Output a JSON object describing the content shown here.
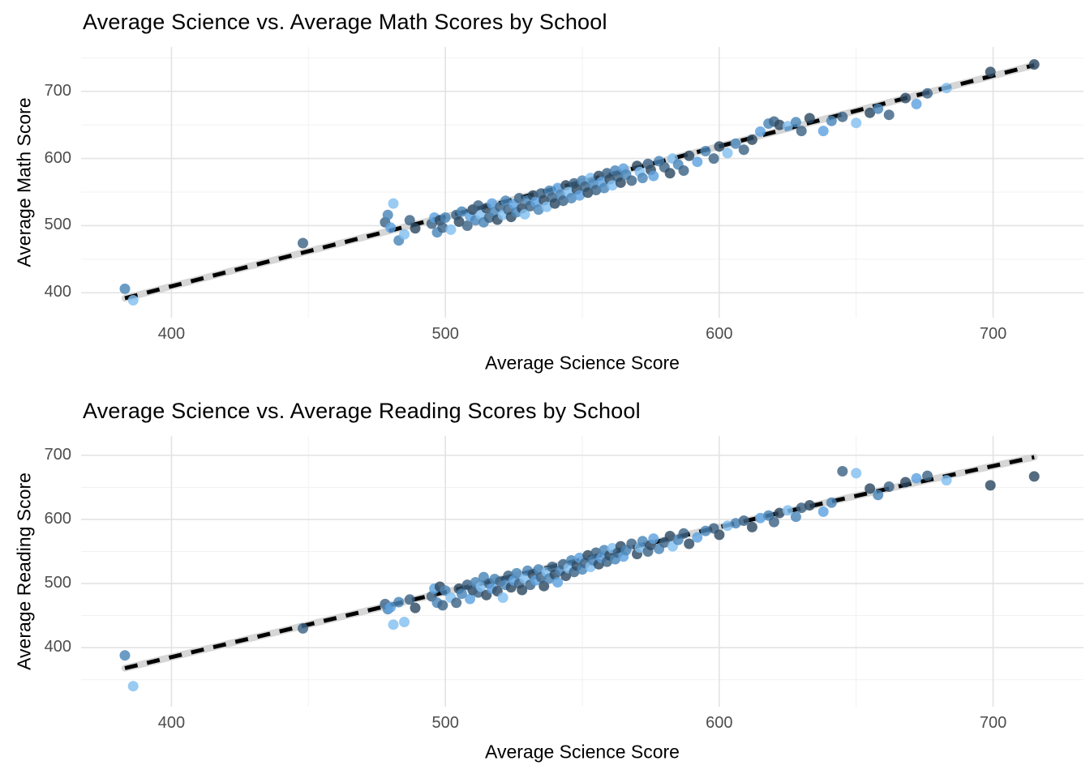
{
  "theme": {
    "background": "#ffffff",
    "grid_major": "#e3e3e3",
    "grid_minor": "#f1f1f1",
    "trend_band": "#d6d6d6",
    "trend_line": "#000000",
    "tick_label_color": "#4d4d4d",
    "title_color": "#000000"
  },
  "point_palette": [
    "#82c0f0",
    "#5ea2e0",
    "#4a86b8",
    "#3d6486",
    "#2e4a63"
  ],
  "schools": {
    "columns": [
      "avg_science",
      "avg_math",
      "avg_reading",
      "color_index"
    ],
    "rows": [
      [
        383,
        406,
        388,
        2
      ],
      [
        386,
        389,
        340,
        0
      ],
      [
        448,
        474,
        430,
        3
      ],
      [
        478,
        505,
        468,
        3
      ],
      [
        479,
        516,
        460,
        2
      ],
      [
        480,
        497,
        463,
        1
      ],
      [
        481,
        533,
        436,
        0
      ],
      [
        483,
        478,
        471,
        2
      ],
      [
        485,
        487,
        440,
        0
      ],
      [
        487,
        508,
        475,
        3
      ],
      [
        489,
        496,
        462,
        4
      ],
      [
        495,
        503,
        480,
        3
      ],
      [
        496,
        512,
        492,
        1
      ],
      [
        497,
        490,
        470,
        2
      ],
      [
        498,
        508,
        495,
        4
      ],
      [
        499,
        497,
        466,
        3
      ],
      [
        500,
        512,
        489,
        2
      ],
      [
        502,
        494,
        478,
        0
      ],
      [
        504,
        516,
        470,
        3
      ],
      [
        505,
        506,
        492,
        4
      ],
      [
        506,
        521,
        484,
        2
      ],
      [
        508,
        500,
        498,
        3
      ],
      [
        509,
        514,
        476,
        1
      ],
      [
        510,
        524,
        490,
        4
      ],
      [
        511,
        508,
        502,
        2
      ],
      [
        512,
        530,
        486,
        3
      ],
      [
        513,
        516,
        495,
        0
      ],
      [
        514,
        505,
        510,
        2
      ],
      [
        515,
        526,
        482,
        4
      ],
      [
        516,
        512,
        500,
        3
      ],
      [
        517,
        533,
        492,
        1
      ],
      [
        518,
        520,
        507,
        2
      ],
      [
        519,
        509,
        488,
        4
      ],
      [
        520,
        528,
        503,
        3
      ],
      [
        521,
        516,
        478,
        0
      ],
      [
        522,
        537,
        498,
        2
      ],
      [
        523,
        524,
        512,
        3
      ],
      [
        524,
        513,
        494,
        4
      ],
      [
        525,
        532,
        505,
        1
      ],
      [
        526,
        520,
        516,
        2
      ],
      [
        527,
        541,
        500,
        3
      ],
      [
        528,
        526,
        490,
        4
      ],
      [
        529,
        517,
        508,
        0
      ],
      [
        530,
        538,
        520,
        2
      ],
      [
        531,
        529,
        498,
        3
      ],
      [
        532,
        545,
        514,
        4
      ],
      [
        533,
        535,
        505,
        1
      ],
      [
        534,
        524,
        522,
        2
      ],
      [
        535,
        548,
        510,
        3
      ],
      [
        536,
        538,
        496,
        4
      ],
      [
        537,
        528,
        518,
        0
      ],
      [
        538,
        552,
        508,
        2
      ],
      [
        539,
        542,
        526,
        3
      ],
      [
        540,
        533,
        514,
        4
      ],
      [
        541,
        556,
        502,
        1
      ],
      [
        542,
        546,
        520,
        2
      ],
      [
        543,
        537,
        530,
        3
      ],
      [
        544,
        560,
        512,
        4
      ],
      [
        545,
        550,
        524,
        0
      ],
      [
        546,
        541,
        536,
        2
      ],
      [
        547,
        563,
        518,
        3
      ],
      [
        548,
        554,
        528,
        4
      ],
      [
        549,
        545,
        540,
        1
      ],
      [
        550,
        567,
        522,
        2
      ],
      [
        551,
        558,
        532,
        3
      ],
      [
        552,
        549,
        544,
        4
      ],
      [
        553,
        571,
        526,
        0
      ],
      [
        554,
        562,
        536,
        2
      ],
      [
        555,
        553,
        548,
        3
      ],
      [
        556,
        574,
        530,
        4
      ],
      [
        557,
        565,
        540,
        1
      ],
      [
        558,
        556,
        552,
        2
      ],
      [
        559,
        578,
        534,
        3
      ],
      [
        560,
        569,
        544,
        4
      ],
      [
        561,
        560,
        555,
        0
      ],
      [
        562,
        582,
        538,
        2
      ],
      [
        563,
        573,
        548,
        3
      ],
      [
        564,
        564,
        558,
        4
      ],
      [
        565,
        585,
        542,
        1
      ],
      [
        566,
        576,
        552,
        2
      ],
      [
        568,
        567,
        562,
        3
      ],
      [
        570,
        589,
        546,
        4
      ],
      [
        571,
        580,
        556,
        0
      ],
      [
        572,
        571,
        566,
        2
      ],
      [
        574,
        592,
        550,
        3
      ],
      [
        575,
        583,
        560,
        4
      ],
      [
        576,
        574,
        570,
        1
      ],
      [
        578,
        596,
        554,
        2
      ],
      [
        580,
        587,
        564,
        3
      ],
      [
        582,
        578,
        574,
        4
      ],
      [
        583,
        600,
        558,
        0
      ],
      [
        585,
        591,
        568,
        2
      ],
      [
        587,
        582,
        578,
        3
      ],
      [
        589,
        604,
        562,
        4
      ],
      [
        592,
        595,
        572,
        1
      ],
      [
        595,
        611,
        582,
        2
      ],
      [
        598,
        600,
        586,
        3
      ],
      [
        600,
        618,
        576,
        4
      ],
      [
        603,
        608,
        590,
        0
      ],
      [
        606,
        622,
        594,
        2
      ],
      [
        609,
        613,
        598,
        3
      ],
      [
        612,
        628,
        588,
        4
      ],
      [
        615,
        640,
        602,
        1
      ],
      [
        618,
        652,
        606,
        2
      ],
      [
        620,
        655,
        596,
        3
      ],
      [
        622,
        650,
        610,
        4
      ],
      [
        625,
        648,
        614,
        0
      ],
      [
        628,
        654,
        604,
        2
      ],
      [
        630,
        641,
        618,
        3
      ],
      [
        633,
        660,
        622,
        4
      ],
      [
        638,
        641,
        612,
        1
      ],
      [
        641,
        656,
        626,
        2
      ],
      [
        645,
        662,
        675,
        3
      ],
      [
        650,
        653,
        672,
        0
      ],
      [
        655,
        668,
        648,
        4
      ],
      [
        658,
        674,
        638,
        2
      ],
      [
        662,
        665,
        651,
        3
      ],
      [
        668,
        690,
        658,
        4
      ],
      [
        672,
        681,
        664,
        1
      ],
      [
        676,
        697,
        668,
        3
      ],
      [
        683,
        705,
        661,
        0
      ],
      [
        699,
        729,
        653,
        4
      ],
      [
        715,
        740,
        667,
        4
      ]
    ]
  },
  "chart_data": [
    {
      "type": "scatter",
      "title": "Average Science vs. Average Math Scores by School",
      "xlabel": "Average Science Score",
      "ylabel": "Average Math Score",
      "x_field": "avg_science",
      "y_field": "avg_math",
      "y_col": 1,
      "x_ticks": [
        400,
        500,
        600,
        700
      ],
      "y_ticks": [
        400,
        500,
        600,
        700
      ],
      "x_minor": [
        450,
        550,
        650
      ],
      "y_minor": [
        450,
        550,
        650,
        750
      ],
      "x_domain": [
        367,
        733
      ],
      "y_domain": [
        363,
        766
      ],
      "grid": "on",
      "legend": "none",
      "trend": {
        "kind": "smooth, black dashed over light-gray band",
        "points": [
          [
            383,
            392
          ],
          [
            450,
            462
          ],
          [
            520,
            534
          ],
          [
            580,
            597
          ],
          [
            650,
            671
          ],
          [
            715,
            739
          ]
        ]
      }
    },
    {
      "type": "scatter",
      "title": "Average Science vs. Average Reading Scores by School",
      "xlabel": "Average Science Score",
      "ylabel": "Average Reading Score",
      "x_field": "avg_science",
      "y_field": "avg_reading",
      "y_col": 2,
      "x_ticks": [
        400,
        500,
        600,
        700
      ],
      "y_ticks": [
        400,
        500,
        600,
        700
      ],
      "x_minor": [
        450,
        550,
        650
      ],
      "y_minor": [
        350,
        450,
        550,
        650
      ],
      "x_domain": [
        367,
        733
      ],
      "y_domain": [
        308,
        730
      ],
      "grid": "on",
      "legend": "none",
      "trend": {
        "kind": "smooth, black dashed over light-gray band",
        "points": [
          [
            383,
            368
          ],
          [
            450,
            436
          ],
          [
            520,
            507
          ],
          [
            575,
            563
          ],
          [
            620,
            608
          ],
          [
            665,
            651
          ],
          [
            715,
            697
          ]
        ]
      }
    }
  ]
}
